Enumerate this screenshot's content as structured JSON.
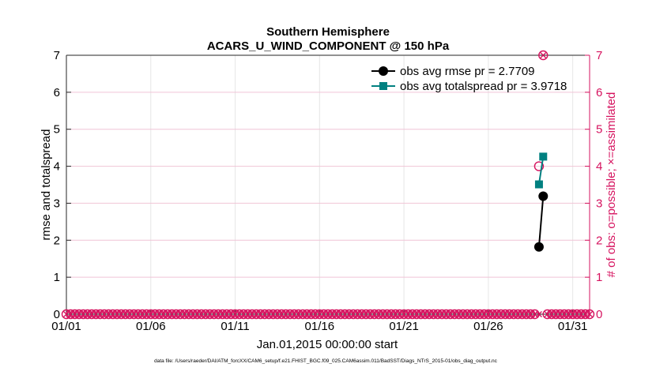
{
  "chart_data": {
    "type": "line",
    "title": "Southern Hemisphere",
    "subtitle": "ACARS_U_WIND_COMPONENT @ 150 hPa",
    "xlabel": "Jan.01,2015 00:00:00 start",
    "ylabel": "rmse and totalspread",
    "ylabel_right": "# of obs: o=possible; ×=assimilated",
    "footer": "data file: /Users/raeder/DAI/ATM_forcXX/CAM6_setup/f.e21.FHIST_BGC.f09_025.CAM6assim.011/BadSST/Diags_NTrS_2015-01/obs_diag_output.nc",
    "x_tick_labels": [
      "01/01",
      "01/06",
      "01/11",
      "01/16",
      "01/21",
      "01/26",
      "01/31"
    ],
    "x_tick_days": [
      0,
      5,
      10,
      15,
      20,
      25,
      30
    ],
    "xlim": [
      0,
      31
    ],
    "ylim": [
      0,
      7
    ],
    "y_ticks": [
      0,
      1,
      2,
      3,
      4,
      5,
      6,
      7
    ],
    "y_ticks_right": [
      0,
      1,
      2,
      3,
      4,
      5,
      6,
      7
    ],
    "grid": true,
    "legend_position": "top-right",
    "legend": [
      "obs avg rmse pr = 2.7709",
      "obs avg totalspread pr = 3.9718"
    ],
    "series": [
      {
        "name": "obs avg rmse pr = 2.7709",
        "color": "#000000",
        "marker": "circle",
        "x": [
          28.0,
          28.25
        ],
        "y": [
          1.82,
          3.19
        ]
      },
      {
        "name": "obs avg totalspread pr = 3.9718",
        "color": "#008080",
        "marker": "square",
        "x": [
          28.0,
          28.25
        ],
        "y": [
          3.51,
          4.26
        ]
      }
    ],
    "obs_count": {
      "color": "#d6135f",
      "x": [
        0.0,
        0.25,
        0.5,
        0.75,
        1.0,
        1.25,
        1.5,
        1.75,
        2.0,
        2.25,
        2.5,
        2.75,
        3.0,
        3.25,
        3.5,
        3.75,
        4.0,
        4.25,
        4.5,
        4.75,
        5.0,
        5.25,
        5.5,
        5.75,
        6.0,
        6.25,
        6.5,
        6.75,
        7.0,
        7.25,
        7.5,
        7.75,
        8.0,
        8.25,
        8.5,
        8.75,
        9.0,
        9.25,
        9.5,
        9.75,
        10.0,
        10.25,
        10.5,
        10.75,
        11.0,
        11.25,
        11.5,
        11.75,
        12.0,
        12.25,
        12.5,
        12.75,
        13.0,
        13.25,
        13.5,
        13.75,
        14.0,
        14.25,
        14.5,
        14.75,
        15.0,
        15.25,
        15.5,
        15.75,
        16.0,
        16.25,
        16.5,
        16.75,
        17.0,
        17.25,
        17.5,
        17.75,
        18.0,
        18.25,
        18.5,
        18.75,
        19.0,
        19.25,
        19.5,
        19.75,
        20.0,
        20.25,
        20.5,
        20.75,
        21.0,
        21.25,
        21.5,
        21.75,
        22.0,
        22.25,
        22.5,
        22.75,
        23.0,
        23.25,
        23.5,
        23.75,
        24.0,
        24.25,
        24.5,
        24.75,
        25.0,
        25.25,
        25.5,
        25.75,
        26.0,
        26.25,
        26.5,
        26.75,
        27.0,
        27.25,
        27.5,
        27.75,
        28.0,
        28.25,
        28.5,
        28.75,
        29.0,
        29.25,
        29.5,
        29.75,
        30.0,
        30.25,
        30.5,
        30.75,
        31.0
      ],
      "possible": [
        0,
        0,
        0,
        0,
        0,
        0,
        0,
        0,
        0,
        0,
        0,
        0,
        0,
        0,
        0,
        0,
        0,
        0,
        0,
        0,
        0,
        0,
        0,
        0,
        0,
        0,
        0,
        0,
        0,
        0,
        0,
        0,
        0,
        0,
        0,
        0,
        0,
        0,
        0,
        0,
        0,
        0,
        0,
        0,
        0,
        0,
        0,
        0,
        0,
        0,
        0,
        0,
        0,
        0,
        0,
        0,
        0,
        0,
        0,
        0,
        0,
        0,
        0,
        0,
        0,
        0,
        0,
        0,
        0,
        0,
        0,
        0,
        0,
        0,
        0,
        0,
        0,
        0,
        0,
        0,
        0,
        0,
        0,
        0,
        0,
        0,
        0,
        0,
        0,
        0,
        0,
        0,
        0,
        0,
        0,
        0,
        0,
        0,
        0,
        0,
        0,
        0,
        0,
        0,
        0,
        0,
        0,
        0,
        0,
        0,
        0,
        0,
        4,
        7,
        0,
        0,
        0,
        0,
        0,
        0,
        0,
        0,
        0,
        0,
        0
      ],
      "assimilated": [
        0,
        0,
        0,
        0,
        0,
        0,
        0,
        0,
        0,
        0,
        0,
        0,
        0,
        0,
        0,
        0,
        0,
        0,
        0,
        0,
        0,
        0,
        0,
        0,
        0,
        0,
        0,
        0,
        0,
        0,
        0,
        0,
        0,
        0,
        0,
        0,
        0,
        0,
        0,
        0,
        0,
        0,
        0,
        0,
        0,
        0,
        0,
        0,
        0,
        0,
        0,
        0,
        0,
        0,
        0,
        0,
        0,
        0,
        0,
        0,
        0,
        0,
        0,
        0,
        0,
        0,
        0,
        0,
        0,
        0,
        0,
        0,
        0,
        0,
        0,
        0,
        0,
        0,
        0,
        0,
        0,
        0,
        0,
        0,
        0,
        0,
        0,
        0,
        0,
        0,
        0,
        0,
        0,
        0,
        0,
        0,
        0,
        0,
        0,
        0,
        0,
        0,
        0,
        0,
        0,
        0,
        0,
        0,
        0,
        0,
        0,
        0,
        0,
        7,
        0,
        0,
        0,
        0,
        0,
        0,
        0,
        0,
        0,
        0,
        0
      ]
    }
  }
}
